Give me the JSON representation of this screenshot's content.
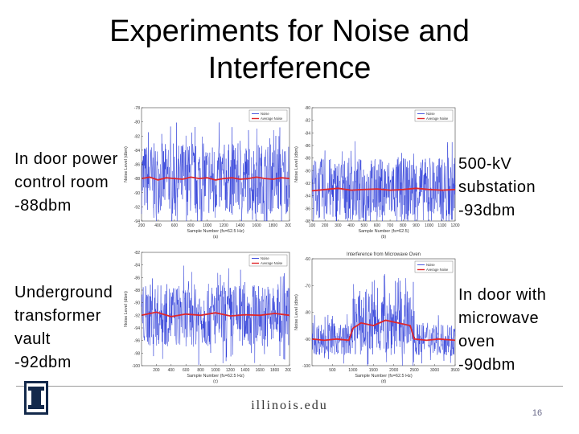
{
  "slide": {
    "title_line1": "Experiments for Noise and",
    "title_line2": "Interference",
    "captions": {
      "top_left": [
        "In door power",
        "control room",
        "-88dbm"
      ],
      "top_right": [
        "500-kV",
        "substation",
        "-93dbm"
      ],
      "bottom_left": [
        "Underground",
        "transformer",
        "vault",
        "-92dbm"
      ],
      "bottom_right": [
        "In door with",
        "microwave",
        "oven",
        "-90dbm"
      ]
    },
    "footer_text": "illinois.edu",
    "page_number": "16"
  },
  "colors": {
    "noise": "#1f2fd6",
    "average": "#e0262a",
    "logo": "#13294b"
  },
  "chart_data": [
    {
      "type": "line",
      "title": "",
      "xlabel": "Sample Number (fs=62.5 Hz)",
      "ylabel": "Noise Level (dbm)",
      "sublabel": "(a)",
      "xlim": [
        200,
        2000
      ],
      "xticks": [
        "200",
        "400",
        "600",
        "800",
        "1000",
        "1200",
        "1400",
        "1600",
        "1800",
        "2000"
      ],
      "ylim": [
        -94,
        -78
      ],
      "yticks": [
        "-78",
        "-80",
        "-82",
        "-84",
        "-86",
        "-88",
        "-90",
        "-92",
        "-94"
      ],
      "legend": [
        "Noise",
        "Average Noise"
      ],
      "series": [
        {
          "name": "Noise",
          "center": -88,
          "spread": 5
        },
        {
          "name": "Average Noise",
          "x": [
            200,
            300,
            400,
            500,
            600,
            700,
            800,
            900,
            1000,
            1100,
            1200,
            1300,
            1400,
            1500,
            1600,
            1700,
            1800,
            1900,
            2000
          ],
          "y": [
            -88,
            -87.8,
            -88.2,
            -87.9,
            -88,
            -88.1,
            -87.8,
            -88,
            -87.9,
            -88.2,
            -88,
            -87.9,
            -88.1,
            -88,
            -87.8,
            -88,
            -88.1,
            -87.9,
            -88
          ]
        }
      ]
    },
    {
      "type": "line",
      "title": "",
      "xlabel": "Sample Number (fs=62.5)",
      "ylabel": "Noise Level (dbm)",
      "sublabel": "(b)",
      "xlim": [
        100,
        1200
      ],
      "xticks": [
        "100",
        "200",
        "300",
        "400",
        "500",
        "600",
        "700",
        "800",
        "900",
        "1000",
        "1100",
        "1200"
      ],
      "ylim": [
        -98,
        -80
      ],
      "yticks": [
        "-80",
        "-82",
        "-84",
        "-86",
        "-88",
        "-90",
        "-92",
        "-94",
        "-96",
        "-98"
      ],
      "legend": [
        "Noise",
        "Average Noise"
      ],
      "series": [
        {
          "name": "Noise",
          "center": -93,
          "spread": 5
        },
        {
          "name": "Average Noise",
          "x": [
            100,
            200,
            300,
            400,
            500,
            600,
            700,
            800,
            900,
            1000,
            1100,
            1200
          ],
          "y": [
            -93.2,
            -93,
            -92.8,
            -93.1,
            -93,
            -92.9,
            -93.1,
            -93,
            -92.8,
            -93,
            -93.1,
            -93
          ]
        }
      ]
    },
    {
      "type": "line",
      "title": "",
      "xlabel": "Sample Number (fs=62.5 Hz)",
      "ylabel": "Noise Level (dbm)",
      "sublabel": "(c)",
      "xlim": [
        0,
        2000
      ],
      "xticks": [
        "200",
        "400",
        "600",
        "800",
        "1000",
        "1200",
        "1400",
        "1600",
        "1800",
        "2000"
      ],
      "ylim": [
        -100,
        -82
      ],
      "yticks": [
        "-82",
        "-84",
        "-86",
        "-88",
        "-90",
        "-92",
        "-94",
        "-96",
        "-98",
        "-100"
      ],
      "legend": [
        "Noise",
        "Average Noise"
      ],
      "series": [
        {
          "name": "Noise",
          "center": -92,
          "spread": 5
        },
        {
          "name": "Average Noise",
          "x": [
            0,
            200,
            400,
            600,
            800,
            1000,
            1200,
            1400,
            1600,
            1800,
            2000
          ],
          "y": [
            -92,
            -91.5,
            -92.2,
            -91.8,
            -92,
            -91.6,
            -92.1,
            -91.9,
            -92,
            -91.7,
            -92
          ]
        }
      ]
    },
    {
      "type": "line",
      "title": "Interference from Microwave Oven",
      "xlabel": "Sample Number (fs=62.5 Hz)",
      "ylabel": "Noise Level (dbm)",
      "sublabel": "(d)",
      "xlim": [
        0,
        3500
      ],
      "xticks": [
        "500",
        "1000",
        "1500",
        "2000",
        "2500",
        "3000",
        "3500"
      ],
      "ylim": [
        -100,
        -60
      ],
      "yticks": [
        "-60",
        "-70",
        "-80",
        "-90",
        "-100"
      ],
      "legend": [
        "Noise",
        "Average Noise"
      ],
      "series": [
        {
          "name": "Noise",
          "segments": [
            {
              "from": 0,
              "to": 1000,
              "center": -90,
              "spread": 6
            },
            {
              "from": 1000,
              "to": 2500,
              "center": -84,
              "spread": 12
            },
            {
              "from": 2500,
              "to": 3500,
              "center": -90,
              "spread": 6
            }
          ]
        },
        {
          "name": "Average Noise",
          "x": [
            0,
            300,
            600,
            900,
            1000,
            1200,
            1500,
            1800,
            2100,
            2400,
            2500,
            2800,
            3100,
            3500
          ],
          "y": [
            -90,
            -90.5,
            -90,
            -90.5,
            -86,
            -84,
            -85,
            -83,
            -84,
            -85,
            -90,
            -90.5,
            -90,
            -90.5
          ]
        }
      ]
    }
  ]
}
